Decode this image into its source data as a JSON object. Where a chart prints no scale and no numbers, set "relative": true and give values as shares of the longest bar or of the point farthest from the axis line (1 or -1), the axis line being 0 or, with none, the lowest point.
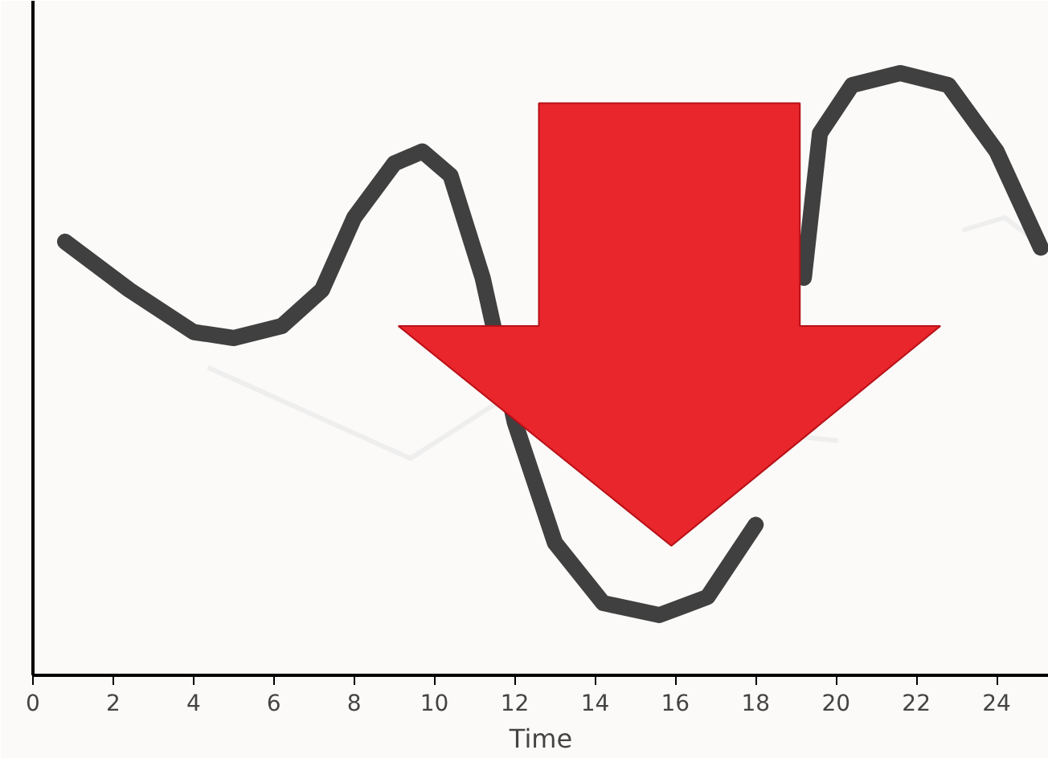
{
  "chart_data": {
    "type": "line",
    "xlabel": "Time",
    "relative": true,
    "xlim": [
      0,
      25.3
    ],
    "xticks": [
      0,
      2,
      4,
      6,
      8,
      10,
      12,
      14,
      16,
      18,
      20,
      22,
      24
    ],
    "grid": false,
    "marker": "none",
    "line_style": "solid",
    "series": [
      {
        "color": "#eeeeee",
        "x": [
          4.4,
          9.4,
          11.5,
          20,
          21.6,
          23.2,
          24.2,
          25.2
        ],
        "values": [
          0.51,
          0.36,
          0.45,
          0.39,
          null,
          0.74,
          0.76,
          0.71
        ]
      },
      {
        "color": "#404040",
        "x": [
          0.8,
          2.4,
          4,
          5,
          6.2,
          7.2,
          8,
          9,
          9.7,
          10.4,
          11.2,
          12,
          13,
          14.2,
          15.6,
          16.8,
          18,
          18.8,
          19.2,
          19.6,
          20.4,
          21.6,
          22.8,
          24,
          25.1
        ],
        "values": [
          0.72,
          0.64,
          0.57,
          0.56,
          0.58,
          0.64,
          0.76,
          0.85,
          0.87,
          0.83,
          0.66,
          0.42,
          0.22,
          0.12,
          0.1,
          0.13,
          0.25,
          null,
          0.66,
          0.9,
          0.98,
          1.0,
          0.98,
          0.87,
          0.71
        ]
      }
    ]
  }
}
